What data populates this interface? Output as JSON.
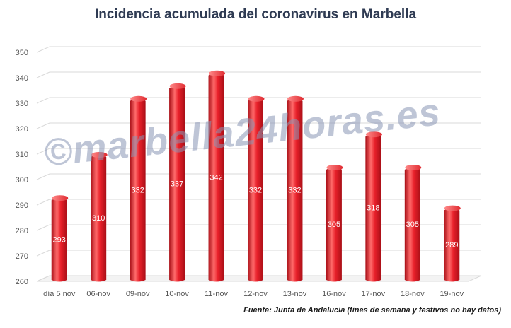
{
  "chart_data": {
    "type": "bar",
    "title": "Incidencia acumulada  del coronavirus  en Marbella",
    "categories": [
      "día 5 nov",
      "06-nov",
      "09-nov",
      "10-nov",
      "11-nov",
      "12-nov",
      "13-nov",
      "16-nov",
      "17-nov",
      "18-nov",
      "19-nov"
    ],
    "values": [
      293,
      310,
      332,
      337,
      342,
      332,
      332,
      305,
      318,
      305,
      289
    ],
    "yticks": [
      260,
      270,
      280,
      290,
      300,
      310,
      320,
      330,
      340,
      350
    ],
    "ylim": [
      260,
      350
    ],
    "xlabel": "",
    "ylabel": "",
    "grid": true,
    "bar_color": "#e8202a",
    "bar_highlight": "#ff6b6b",
    "bar_shade": "#a90f17",
    "source": "Fuente: Junta de Andalucía (fines de semana y festivos no hay datos)"
  },
  "watermark": "©marbella24horas.es"
}
